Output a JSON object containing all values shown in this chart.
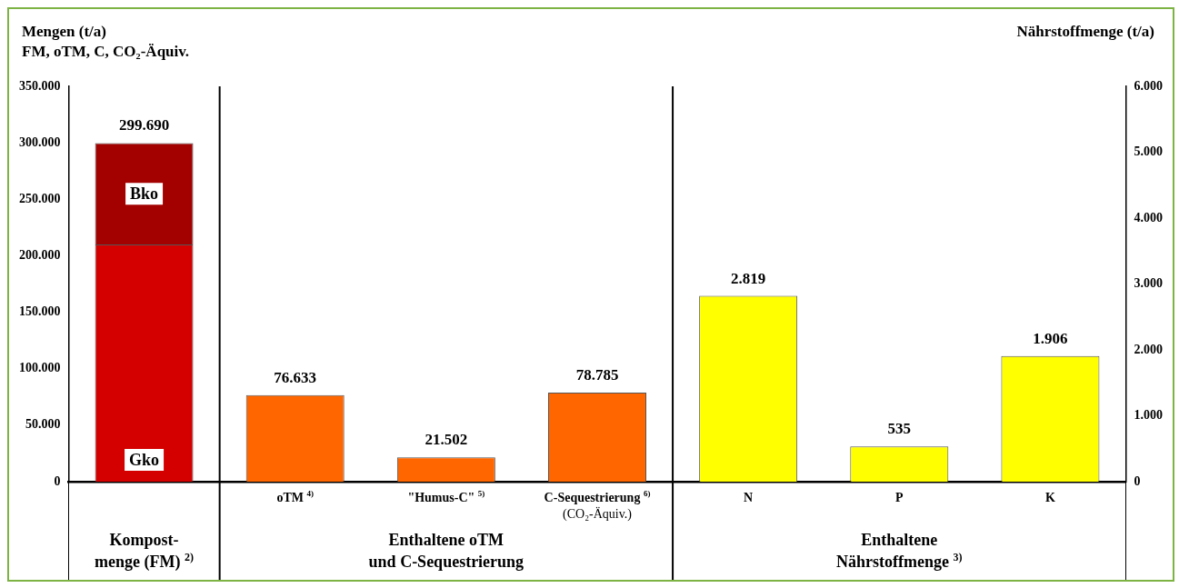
{
  "chart_data": {
    "type": "bar",
    "stacked": true,
    "ylabel": "Mengen (t/a)\nFM, oTM, C, CO₂-Äquiv.",
    "y2label": "Nährstoffmenge (t/a)",
    "categories": [
      null,
      "oTM $^{4)}$",
      "\"Humus-C\" $^{5)}$",
      "C-Sequestrierung $^{6)}$\n(CO₂-Äquiv.)",
      "N",
      "P",
      "K"
    ],
    "series": [
      {
        "name": "Gko",
        "color": "#d40000",
        "values": [
          210000,
          null,
          null,
          null,
          null,
          null,
          null
        ]
      },
      {
        "name": "Bko",
        "color": "#a30000",
        "values": [
          89690,
          null,
          null,
          null,
          null,
          null,
          null
        ]
      },
      {
        "color": "#ff6600",
        "values": [
          null,
          76633,
          21502,
          78785,
          null,
          null,
          null
        ],
        "value_labels": [
          null,
          "76.633",
          "21.502",
          "78.785",
          null,
          null,
          null
        ]
      },
      {
        "color": "#ffff00",
        "axis": "y2",
        "values": [
          null,
          null,
          null,
          null,
          2819,
          535,
          1906
        ],
        "value_labels": [
          null,
          null,
          null,
          null,
          "2.819",
          "535",
          "1.906"
        ]
      }
    ],
    "totals": [
      "299.690",
      null,
      null,
      null,
      null,
      null,
      null
    ],
    "ylim": [
      0,
      350000
    ],
    "yticks": [
      {
        "value": 0,
        "label": "0"
      },
      {
        "value": 50000,
        "label": "50.000"
      },
      {
        "value": 100000,
        "label": "100.000"
      },
      {
        "value": 150000,
        "label": "150.000"
      },
      {
        "value": 200000,
        "label": "200.000"
      },
      {
        "value": 250000,
        "label": "250.000"
      },
      {
        "value": 300000,
        "label": "300.000"
      },
      {
        "value": 350000,
        "label": "350.000"
      }
    ],
    "y2lim": [
      0,
      6000
    ],
    "y2ticks": [
      {
        "value": 0,
        "label": "0"
      },
      {
        "value": 1000,
        "label": "1.000"
      },
      {
        "value": 2000,
        "label": "2.000"
      },
      {
        "value": 3000,
        "label": "3.000"
      },
      {
        "value": 4000,
        "label": "4.000"
      },
      {
        "value": 5000,
        "label": "5.000"
      },
      {
        "value": 6000,
        "label": "6.000"
      }
    ],
    "annotations": [
      "Kompost-\nmenge (FM) $^{2)}$",
      "Enthaltene oTM\nund C-Sequestrierung",
      "Enthaltene\nNährstoffmenge $^{3)}$"
    ]
  }
}
